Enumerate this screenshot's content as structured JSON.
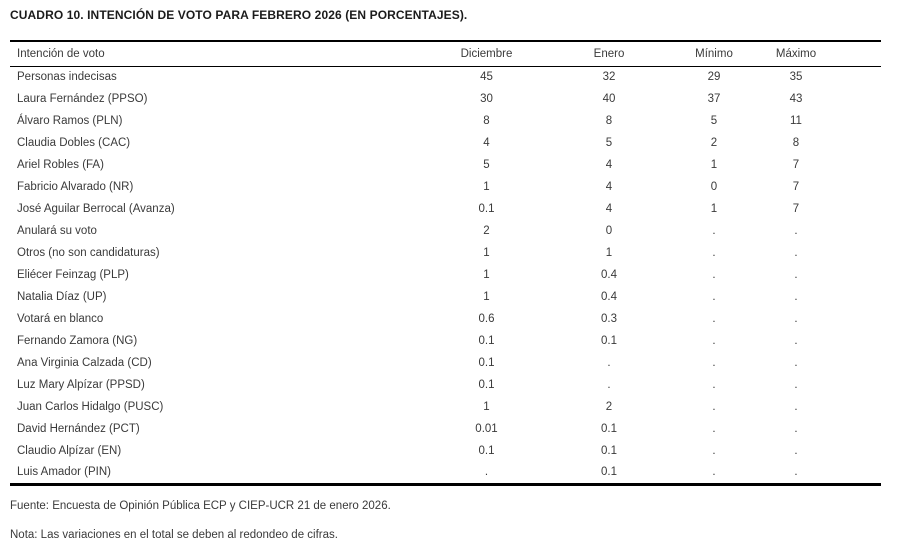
{
  "title": "CUADRO 10. INTENCIÓN DE VOTO PARA FEBRERO 2026 (EN PORCENTAJES).",
  "table": {
    "columns": [
      "Intención de voto",
      "Diciembre",
      "Enero",
      "Mínimo",
      "Máximo"
    ],
    "rows": [
      [
        "Personas indecisas",
        "45",
        "32",
        "29",
        "35"
      ],
      [
        "Laura Fernández (PPSO)",
        "30",
        "40",
        "37",
        "43"
      ],
      [
        "Álvaro Ramos (PLN)",
        "8",
        "8",
        "5",
        "11"
      ],
      [
        "Claudia Dobles (CAC)",
        "4",
        "5",
        "2",
        "8"
      ],
      [
        "Ariel Robles (FA)",
        "5",
        "4",
        "1",
        "7"
      ],
      [
        "Fabricio Alvarado (NR)",
        "1",
        "4",
        "0",
        "7"
      ],
      [
        "José Aguilar Berrocal (Avanza)",
        "0.1",
        "4",
        "1",
        "7"
      ],
      [
        "Anulará su voto",
        "2",
        "0",
        ".",
        "."
      ],
      [
        "Otros (no son candidaturas)",
        "1",
        "1",
        ".",
        "."
      ],
      [
        "Eliécer Feinzag (PLP)",
        "1",
        "0.4",
        ".",
        "."
      ],
      [
        "Natalia Díaz (UP)",
        "1",
        "0.4",
        ".",
        "."
      ],
      [
        "Votará en blanco",
        "0.6",
        "0.3",
        ".",
        "."
      ],
      [
        "Fernando Zamora (NG)",
        "0.1",
        "0.1",
        ".",
        "."
      ],
      [
        "Ana Virginia Calzada (CD)",
        "0.1",
        ".",
        ".",
        "."
      ],
      [
        "Luz Mary Alpízar (PPSD)",
        "0.1",
        ".",
        ".",
        "."
      ],
      [
        "Juan Carlos Hidalgo (PUSC)",
        "1",
        "2",
        ".",
        "."
      ],
      [
        "David Hernández (PCT)",
        "0.01",
        "0.1",
        ".",
        "."
      ],
      [
        "Claudio Alpízar (EN)",
        "0.1",
        "0.1",
        ".",
        "."
      ],
      [
        "Luis Amador (PIN)",
        ".",
        "0.1",
        ".",
        "."
      ]
    ]
  },
  "footer": {
    "fuente": "Fuente: Encuesta de Opinión Pública ECP y CIEP-UCR 21 de enero 2026.",
    "nota": "Nota: Las variaciones en el total se deben al redondeo de cifras."
  }
}
